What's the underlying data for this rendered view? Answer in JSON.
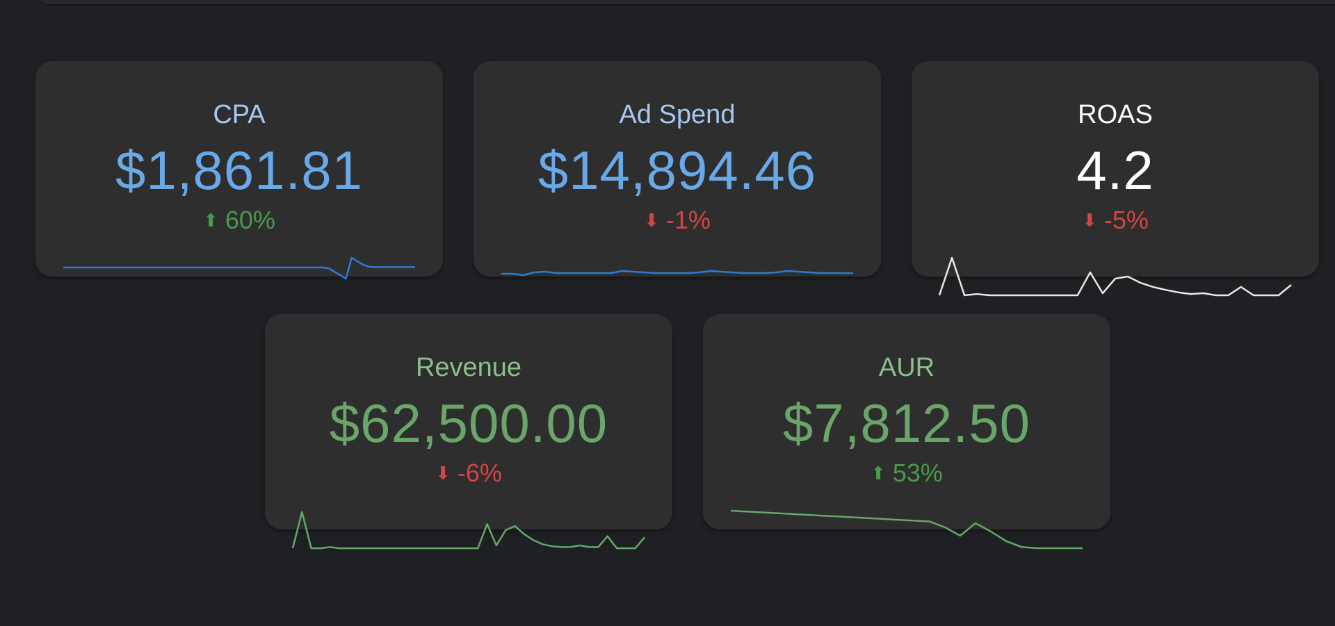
{
  "colors": {
    "blue": "#6aa9e8",
    "white": "#ffffff",
    "green": "#6aa56a",
    "green_delta": "#4a9a4a",
    "red_delta": "#d64545",
    "line_blue": "#2b7bd6",
    "line_white": "#e8e8e8",
    "line_green": "#66a866"
  },
  "cards": [
    {
      "title": "CPA",
      "value": "$1,861.81",
      "delta": "60%",
      "direction": "up",
      "arrow_icon": "arrow-up-icon",
      "sparkline": [
        0.42,
        0.42,
        0.42,
        0.42,
        0.42,
        0.42,
        0.42,
        0.42,
        0.42,
        0.42,
        0.42,
        0.42,
        0.42,
        0.42,
        0.42,
        0.42,
        0.42,
        0.42,
        0.42,
        0.42,
        0.42,
        0.42,
        0.42,
        0.42,
        0.42,
        0.42,
        0.42,
        0.42,
        0.42,
        0.42,
        0.42,
        0.42,
        0.42,
        0.42,
        0.42,
        0.42,
        0.42,
        0.42,
        0.42,
        0.42,
        0.42,
        0.42,
        0.42,
        0.42,
        0.42,
        0.42,
        0.4,
        0.3,
        0.2,
        0.1,
        0.7,
        0.6,
        0.5,
        0.44,
        0.43,
        0.43,
        0.43,
        0.43,
        0.43,
        0.43,
        0.43,
        0.43
      ]
    },
    {
      "title": "Ad Spend",
      "value": "$14,894.46",
      "delta": "-1%",
      "direction": "down",
      "arrow_icon": "arrow-down-icon",
      "sparkline": [
        0.3,
        0.3,
        0.2,
        0.4,
        0.45,
        0.35,
        0.35,
        0.35,
        0.35,
        0.35,
        0.35,
        0.5,
        0.45,
        0.4,
        0.35,
        0.35,
        0.35,
        0.35,
        0.4,
        0.5,
        0.45,
        0.4,
        0.35,
        0.35,
        0.35,
        0.4,
        0.5,
        0.45,
        0.4,
        0.35,
        0.35,
        0.35,
        0.33
      ]
    },
    {
      "title": "ROAS",
      "value": "4.2",
      "delta": "-5%",
      "direction": "down",
      "arrow_icon": "arrow-down-icon",
      "sparkline": [
        0.05,
        0.95,
        0.05,
        0.08,
        0.05,
        0.05,
        0.05,
        0.05,
        0.05,
        0.05,
        0.05,
        0.05,
        0.6,
        0.1,
        0.45,
        0.5,
        0.35,
        0.25,
        0.18,
        0.12,
        0.08,
        0.1,
        0.05,
        0.05,
        0.25,
        0.05,
        0.05,
        0.05,
        0.3
      ]
    },
    {
      "title": "Revenue",
      "value": "$62,500.00",
      "delta": "-6%",
      "direction": "down",
      "arrow_icon": "arrow-down-icon",
      "sparkline": [
        0.05,
        0.95,
        0.05,
        0.05,
        0.08,
        0.05,
        0.05,
        0.05,
        0.05,
        0.05,
        0.05,
        0.05,
        0.05,
        0.05,
        0.05,
        0.05,
        0.05,
        0.05,
        0.05,
        0.05,
        0.05,
        0.65,
        0.12,
        0.5,
        0.6,
        0.4,
        0.25,
        0.15,
        0.1,
        0.08,
        0.08,
        0.12,
        0.08,
        0.08,
        0.35,
        0.05,
        0.05,
        0.05,
        0.32
      ]
    },
    {
      "title": "AUR",
      "value": "$7,812.50",
      "delta": "53%",
      "direction": "up",
      "arrow_icon": "arrow-up-icon",
      "sparkline": [
        0.95,
        0.93,
        0.91,
        0.89,
        0.87,
        0.85,
        0.83,
        0.81,
        0.79,
        0.77,
        0.75,
        0.73,
        0.71,
        0.69,
        0.55,
        0.35,
        0.65,
        0.45,
        0.22,
        0.08,
        0.05,
        0.05,
        0.05,
        0.05
      ]
    }
  ]
}
